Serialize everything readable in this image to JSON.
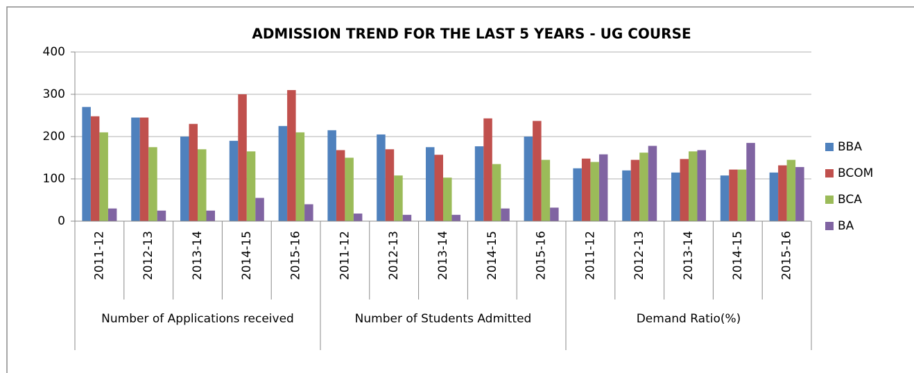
{
  "chart_data": {
    "type": "bar",
    "title": "ADMISSION TREND FOR THE LAST 5 YEARS    - UG COURSE",
    "groups": [
      {
        "name": "Number of Applications received",
        "categories": [
          "2011-12",
          "2012-13",
          "2013-14",
          "2014-15",
          "2015-16"
        ]
      },
      {
        "name": "Number of Students Admitted",
        "categories": [
          "2011-12",
          "2012-13",
          "2013-14",
          "2014-15",
          "2015-16"
        ]
      },
      {
        "name": "Demand Ratio(%)",
        "categories": [
          "2011-12",
          "2012-13",
          "2013-14",
          "2014-15",
          "2015-16"
        ]
      }
    ],
    "series": [
      {
        "name": "BBA",
        "color": "#4f81bd",
        "values": [
          270,
          245,
          200,
          190,
          225,
          215,
          205,
          175,
          177,
          200,
          125,
          120,
          115,
          108,
          115
        ]
      },
      {
        "name": "BCOM",
        "color": "#c0504d",
        "values": [
          248,
          245,
          230,
          300,
          310,
          168,
          170,
          157,
          243,
          237,
          148,
          145,
          147,
          122,
          132
        ]
      },
      {
        "name": "BCA",
        "color": "#9bbb59",
        "values": [
          210,
          175,
          170,
          165,
          210,
          150,
          108,
          103,
          135,
          145,
          140,
          162,
          165,
          122,
          145
        ]
      },
      {
        "name": "BA",
        "color": "#8064a2",
        "values": [
          30,
          25,
          25,
          55,
          40,
          18,
          15,
          15,
          30,
          32,
          158,
          178,
          168,
          185,
          128
        ]
      }
    ],
    "ylim": [
      0,
      400
    ],
    "yticks": [
      0,
      100,
      200,
      300,
      400
    ],
    "grid": true,
    "legend": "right"
  }
}
